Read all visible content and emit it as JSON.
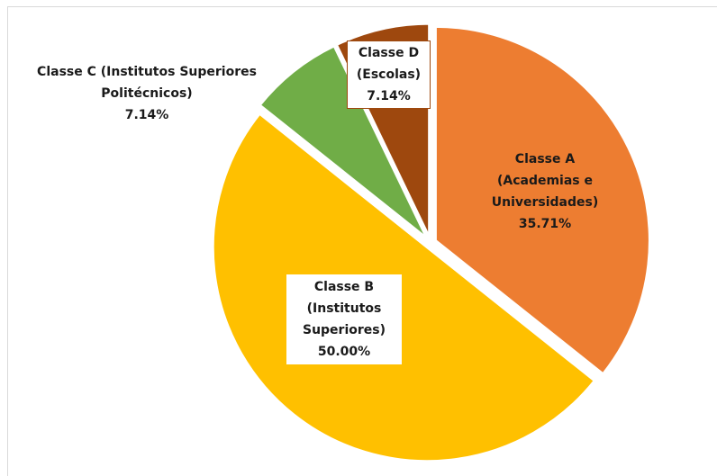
{
  "chart_data": {
    "type": "pie",
    "categories": [
      "Classe A (Academias e Universidades)",
      "Classe B (Institutos Superiores)",
      "Classe C (Institutos Superiores Politécnicos)",
      "Classe D (Escolas)"
    ],
    "values": [
      35.71,
      50.0,
      7.14,
      7.14
    ],
    "value_labels": [
      "35.71%",
      "50.00%",
      "7.14%",
      "7.14%"
    ],
    "colors": [
      "#ED7D31",
      "#FFC000",
      "#70AD47",
      "#9E480E"
    ]
  }
}
